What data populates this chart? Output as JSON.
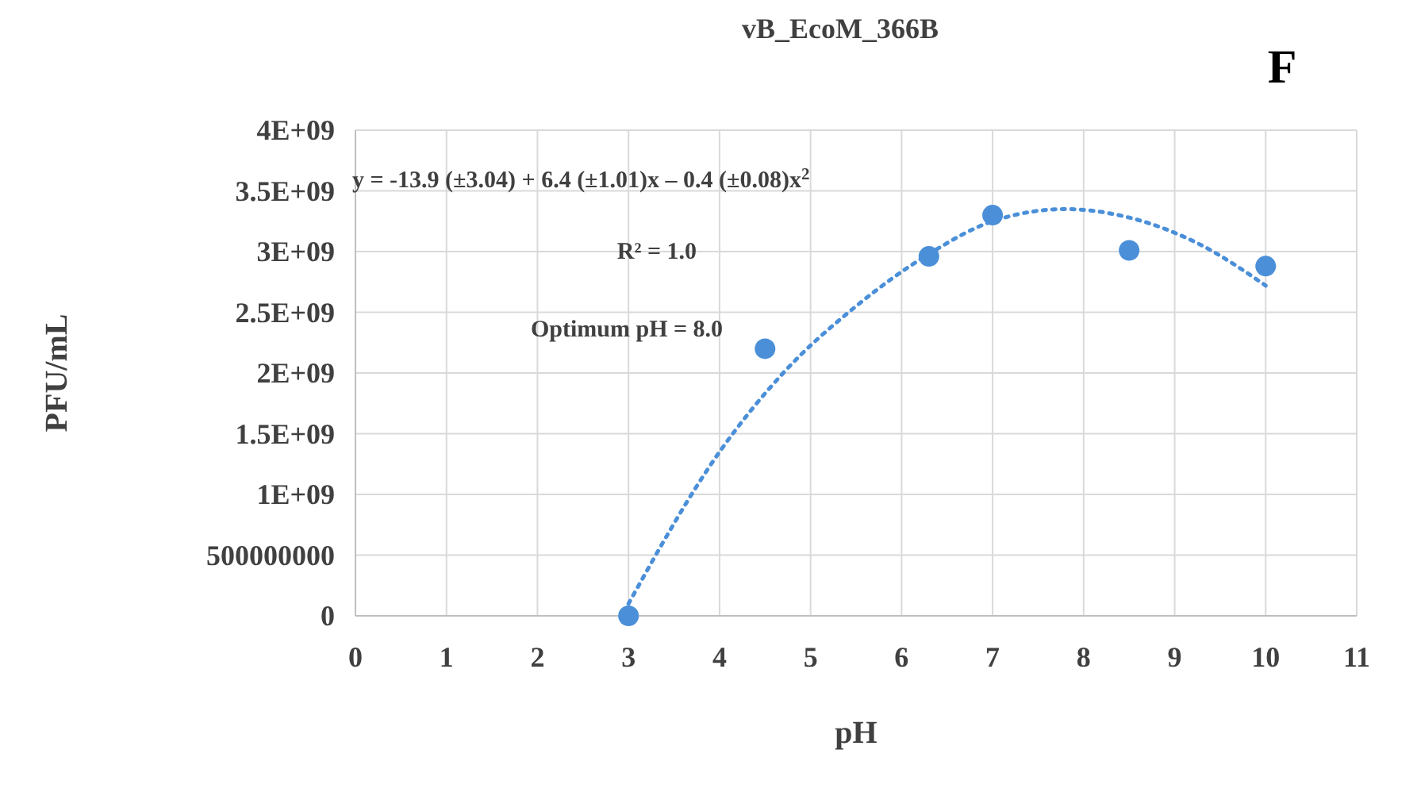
{
  "chart_data": {
    "type": "scatter",
    "title": "vB_EcoM_366B",
    "xlabel": "pH",
    "ylabel": "PFU/mL",
    "xlim": [
      0,
      11
    ],
    "xticks": [
      0,
      1,
      2,
      3,
      4,
      5,
      6,
      7,
      8,
      9,
      10,
      11
    ],
    "ylim": [
      0,
      4000000000
    ],
    "yticks": [
      0,
      500000000,
      {
        "value": 1000000000,
        "label": "1E+09"
      },
      {
        "value": 1500000000,
        "label": "1.5E+09"
      },
      {
        "value": 2000000000,
        "label": "2E+09"
      },
      {
        "value": 2500000000,
        "label": "2.5E+09"
      },
      {
        "value": 3000000000,
        "label": "3E+09"
      },
      {
        "value": 3500000000,
        "label": "3.5E+09"
      },
      {
        "value": 4000000000,
        "label": "4E+09"
      }
    ],
    "grid": true,
    "series": [
      {
        "color": "#4a8fd8",
        "marker": "circle",
        "x": [
          3,
          4.5,
          6.3,
          7,
          8.5,
          10
        ],
        "values": [
          0,
          2200000000,
          2960000000,
          3300000000,
          3010000000,
          2880000000
        ]
      },
      {
        "type": "line",
        "color": "#4a8fd8",
        "marker": "none",
        "line_style": "dotted",
        "x": [
          3,
          4,
          4.7,
          5.5,
          6.3,
          7,
          7.8,
          8.5,
          9.3,
          10
        ],
        "values": [
          100000000,
          1350000000,
          2000000000,
          2550000000,
          2980000000,
          3250000000,
          3350000000,
          3280000000,
          3050000000,
          2720000000
        ]
      }
    ],
    "annotations": [
      "y = -13.9 (±3.04) + 6.4 (±1.01)x – 0.4 (±0.08)x$^{2}$",
      "R² = 1.0",
      "Optimum  pH = 8.0",
      "F"
    ]
  }
}
